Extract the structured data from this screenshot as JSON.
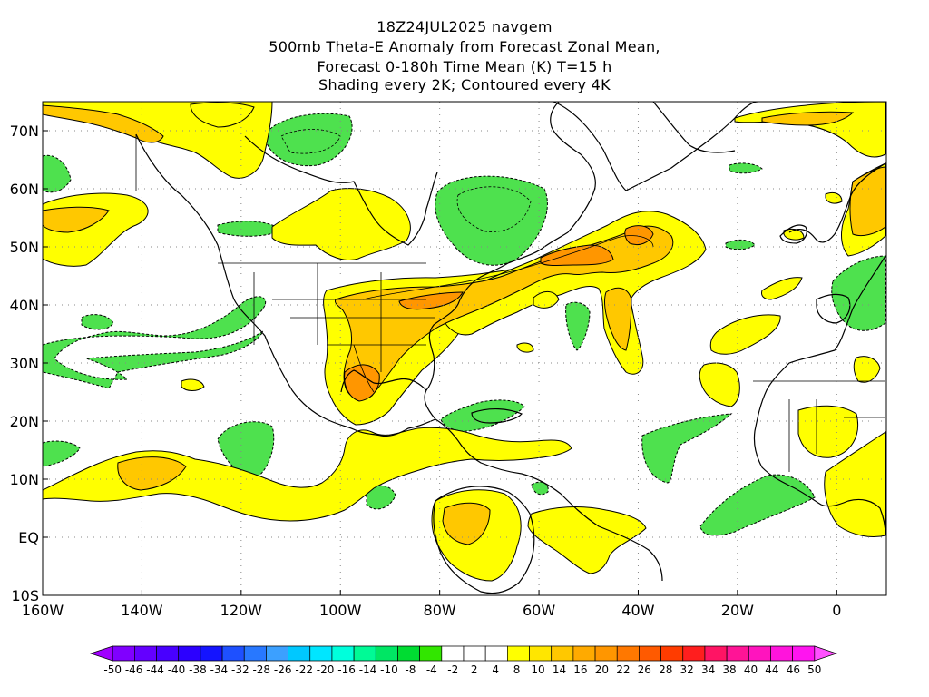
{
  "header": {
    "line1": "18Z24JUL2025 navgem",
    "line2": "500mb Theta-E Anomaly from Forecast Zonal Mean,",
    "line3": "Forecast 0-180h Time Mean (K) T=15 h",
    "line4": "Shading every 2K; Contoured every 4K"
  },
  "map": {
    "lon_range": [
      -160,
      10
    ],
    "lat_range": [
      -10,
      75
    ],
    "lon_ticks": [
      {
        "value": -160,
        "label": "160W"
      },
      {
        "value": -140,
        "label": "140W"
      },
      {
        "value": -120,
        "label": "120W"
      },
      {
        "value": -100,
        "label": "100W"
      },
      {
        "value": -80,
        "label": "80W"
      },
      {
        "value": -60,
        "label": "60W"
      },
      {
        "value": -40,
        "label": "40W"
      },
      {
        "value": -20,
        "label": "20W"
      },
      {
        "value": 0,
        "label": "0"
      }
    ],
    "lat_ticks": [
      {
        "value": -10,
        "label": "10S"
      },
      {
        "value": 0,
        "label": "EQ"
      },
      {
        "value": 10,
        "label": "10N"
      },
      {
        "value": 20,
        "label": "20N"
      },
      {
        "value": 30,
        "label": "30N"
      },
      {
        "value": 40,
        "label": "40N"
      },
      {
        "value": 50,
        "label": "50N"
      },
      {
        "value": 60,
        "label": "60N"
      },
      {
        "value": 70,
        "label": "70N"
      }
    ],
    "gridlines": "dotted"
  },
  "colorbar": {
    "labels": [
      "-50",
      "-46",
      "-44",
      "-40",
      "-38",
      "-34",
      "-32",
      "-28",
      "-26",
      "-22",
      "-20",
      "-16",
      "-14",
      "-10",
      "-8",
      "-4",
      "-2",
      "2",
      "4",
      "8",
      "10",
      "14",
      "16",
      "20",
      "22",
      "26",
      "28",
      "32",
      "34",
      "38",
      "40",
      "44",
      "46",
      "50"
    ],
    "colors": [
      "#a000ff",
      "#8000ff",
      "#6400ff",
      "#4800ff",
      "#2c00ff",
      "#1414ff",
      "#1e50ff",
      "#2878ff",
      "#3ca0ff",
      "#00c8ff",
      "#00e6ff",
      "#00ffdc",
      "#00fa96",
      "#00e664",
      "#00dc32",
      "#32e600",
      "#ffffff",
      "#ffffff",
      "#ffffff",
      "#ffff00",
      "#ffe600",
      "#ffc800",
      "#ffaa00",
      "#ff9600",
      "#ff7800",
      "#ff5a00",
      "#ff3c00",
      "#ff1e1e",
      "#ff1464",
      "#ff1496",
      "#ff14be",
      "#ff14dc",
      "#ff14f0",
      "#ff50ff"
    ]
  },
  "legend_units": "K"
}
